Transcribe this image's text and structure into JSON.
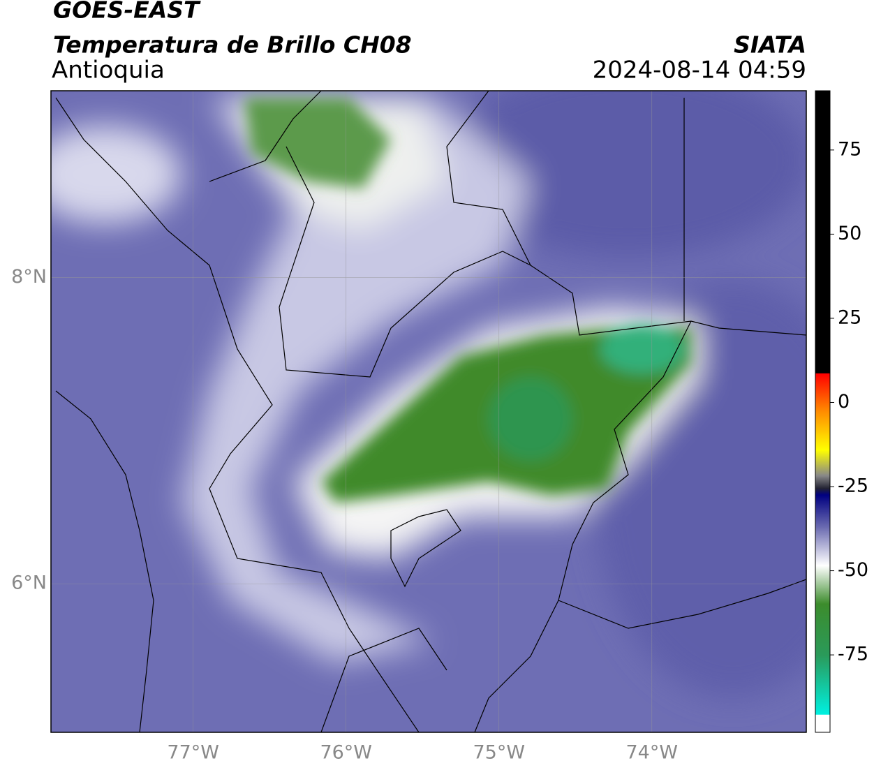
{
  "header": {
    "title": "GOES-EAST",
    "subtitle": "Temperatura de Brillo CH08",
    "region": "Antioquia",
    "source": "SIATA",
    "datetime": "2024-08-14 04:59"
  },
  "map": {
    "xlim": [
      -77.93,
      -72.99
    ],
    "ylim": [
      5.03,
      9.22
    ],
    "xticks": [
      {
        "value": -77,
        "label": "77°W"
      },
      {
        "value": -76,
        "label": "76°W"
      },
      {
        "value": -75,
        "label": "75°W"
      },
      {
        "value": -74,
        "label": "74°W"
      }
    ],
    "yticks": [
      {
        "value": 8,
        "label": "8°N"
      },
      {
        "value": 6,
        "label": "6°N"
      }
    ],
    "grid": true
  },
  "colorbar": {
    "lim": [
      -98,
      92.6
    ],
    "ticks": [
      75,
      50,
      25,
      0,
      -25,
      -50,
      -75
    ]
  }
}
